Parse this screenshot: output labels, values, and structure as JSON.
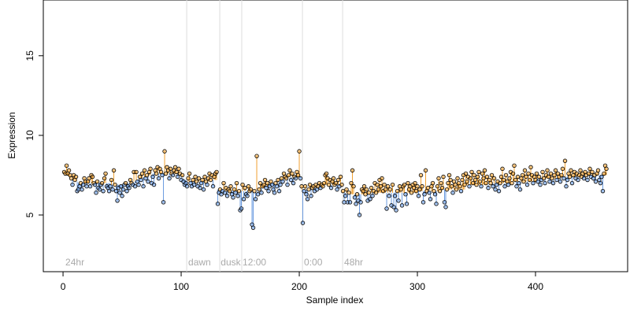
{
  "chart_data": {
    "type": "lollipop",
    "x_label": "Sample index",
    "y_label": "Expression",
    "xlim": [
      -16.7,
      478
    ],
    "ylim": [
      1.44,
      18.5
    ],
    "xticks": [
      0,
      100,
      200,
      300,
      400
    ],
    "yticks": [
      5,
      10,
      15
    ],
    "colors": {
      "above": "#f0a030",
      "below": "#6a9be0",
      "point_edge": "#000000",
      "segment_line": "#dddddd",
      "annotation": "#aaaaaa"
    },
    "segment_lines": [
      104.7,
      132.7,
      151.3,
      202.7,
      236.7
    ],
    "annotations": [
      {
        "x": 2,
        "y": 2.0,
        "label": "24hr"
      },
      {
        "x": 106,
        "y": 2.0,
        "label": "dawn"
      },
      {
        "x": 133.5,
        "y": 2.0,
        "label": "dusk"
      },
      {
        "x": 152,
        "y": 2.0,
        "label": "12:00"
      },
      {
        "x": 204,
        "y": 2.0,
        "label": "0:00"
      },
      {
        "x": 238,
        "y": 2.0,
        "label": "48hr"
      }
    ],
    "values": [
      7.7,
      7.6,
      8.1,
      7.6,
      7.8,
      7.5,
      7.3,
      6.9,
      7.5,
      7.2,
      7.4,
      6.5,
      6.6,
      6.8,
      7.0,
      6.6,
      6.9,
      7.3,
      7.1,
      6.8,
      7.1,
      7.3,
      6.8,
      7.5,
      7.4,
      7.0,
      6.9,
      6.4,
      7.1,
      6.7,
      6.6,
      6.9,
      7.0,
      6.5,
      7.3,
      7.6,
      6.8,
      6.7,
      6.5,
      6.8,
      7.2,
      6.6,
      7.8,
      6.9,
      6.5,
      5.9,
      6.7,
      6.4,
      6.8,
      6.2,
      6.6,
      6.9,
      7.0,
      6.5,
      6.8,
      6.7,
      7.2,
      7.0,
      6.9,
      7.7,
      6.8,
      7.7,
      7.1,
      6.9,
      7.4,
      7.2,
      7.6,
      6.8,
      7.8,
      7.3,
      7.5,
      7.1,
      7.7,
      7.9,
      7.0,
      7.4,
      6.9,
      7.8,
      7.6,
      8.0,
      7.3,
      7.9,
      7.7,
      7.5,
      5.8,
      9.0,
      7.6,
      8.0,
      7.8,
      7.3,
      7.9,
      7.6,
      7.5,
      7.8,
      8.0,
      7.7,
      7.4,
      7.9,
      7.6,
      7.2,
      7.5,
      7.1,
      6.9,
      7.0,
      6.8,
      7.3,
      7.6,
      7.0,
      6.8,
      7.2,
      6.9,
      7.4,
      7.1,
      6.8,
      7.3,
      6.7,
      7.0,
      7.2,
      6.6,
      7.4,
      7.1,
      6.9,
      7.3,
      7.6,
      7.2,
      7.5,
      6.8,
      7.4,
      7.6,
      7.7,
      5.7,
      6.4,
      6.6,
      6.3,
      6.5,
      7.0,
      6.4,
      6.7,
      6.2,
      6.6,
      6.5,
      6.8,
      6.3,
      6.1,
      6.6,
      6.4,
      7.0,
      6.2,
      6.5,
      5.3,
      5.4,
      6.9,
      6.0,
      6.7,
      6.3,
      6.2,
      6.8,
      6.5,
      6.6,
      4.4,
      4.2,
      6.5,
      6.0,
      8.7,
      6.3,
      6.6,
      7.0,
      6.4,
      6.8,
      6.9,
      7.2,
      6.7,
      7.0,
      6.5,
      6.8,
      7.1,
      6.9,
      6.6,
      6.4,
      7.0,
      6.8,
      7.2,
      6.5,
      6.9,
      7.3,
      7.1,
      7.6,
      7.4,
      7.3,
      6.9,
      7.5,
      7.8,
      7.2,
      7.6,
      7.0,
      7.4,
      7.3,
      7.7,
      7.5,
      9.0,
      7.3,
      6.8,
      4.5,
      6.5,
      6.8,
      6.3,
      6.0,
      6.6,
      6.9,
      6.2,
      6.7,
      6.8,
      6.5,
      6.9,
      6.6,
      6.8,
      7.0,
      6.7,
      6.9,
      6.8,
      7.0,
      7.5,
      7.6,
      7.3,
      6.9,
      7.2,
      6.7,
      7.1,
      7.3,
      6.9,
      7.0,
      6.6,
      7.2,
      6.8,
      7.4,
      6.9,
      6.5,
      5.8,
      6.2,
      6.6,
      5.8,
      6.4,
      5.8,
      7.0,
      7.8,
      6.8,
      6.1,
      5.7,
      6.3,
      5.9,
      5.0,
      5.8,
      6.6,
      6.5,
      6.8,
      6.3,
      6.6,
      5.9,
      6.4,
      6.0,
      6.7,
      6.2,
      6.5,
      7.0,
      6.4,
      6.9,
      6.6,
      7.2,
      6.8,
      7.3,
      6.5,
      6.9,
      6.6,
      5.4,
      6.8,
      6.2,
      6.6,
      5.6,
      6.9,
      5.5,
      6.2,
      5.3,
      6.5,
      5.9,
      6.8,
      6.6,
      5.6,
      6.8,
      6.9,
      6.3,
      5.7,
      7.0,
      6.6,
      6.8,
      6.4,
      6.9,
      6.7,
      7.0,
      6.5,
      6.8,
      6.2,
      6.6,
      7.5,
      6.8,
      5.8,
      6.3,
      7.8,
      6.5,
      6.7,
      6.4,
      6.0,
      6.8,
      7.0,
      6.5,
      6.3,
      5.7,
      6.8,
      7.3,
      6.5,
      7.0,
      6.7,
      7.4,
      5.8,
      5.5,
      6.6,
      7.0,
      7.5,
      7.2,
      6.8,
      6.4,
      7.1,
      6.9,
      6.6,
      7.3,
      7.0,
      6.8,
      6.5,
      7.2,
      7.5,
      6.9,
      7.6,
      7.1,
      7.4,
      6.8,
      7.3,
      7.7,
      7.0,
      7.5,
      7.2,
      6.9,
      7.4,
      7.7,
      7.1,
      6.8,
      7.6,
      7.3,
      7.8,
      7.0,
      7.4,
      6.7,
      7.2,
      7.0,
      7.5,
      6.8,
      7.3,
      6.6,
      6.9,
      7.1,
      6.5,
      7.0,
      7.4,
      7.9,
      7.2,
      6.8,
      7.5,
      7.1,
      6.9,
      7.3,
      7.7,
      7.0,
      7.6,
      8.1,
      7.2,
      6.8,
      7.4,
      7.0,
      6.6,
      7.3,
      7.5,
      7.1,
      7.8,
      7.4,
      6.9,
      7.6,
      7.2,
      8.0,
      7.5,
      7.0,
      7.4,
      7.2,
      7.6,
      7.1,
      7.4,
      6.9,
      7.2,
      7.7,
      7.3,
      7.0,
      7.5,
      7.8,
      7.4,
      7.1,
      7.6,
      7.3,
      7.0,
      7.5,
      7.8,
      7.2,
      7.6,
      7.4,
      7.1,
      7.5,
      7.9,
      7.3,
      8.4,
      6.8,
      7.2,
      7.6,
      7.4,
      7.8,
      7.0,
      7.5,
      7.7,
      7.3,
      7.6,
      7.2,
      7.5,
      7.8,
      7.4,
      7.6,
      7.3,
      7.7,
      7.5,
      7.2,
      7.6,
      7.9,
      7.4,
      7.7,
      7.3,
      7.5,
      7.1,
      7.6,
      7.8,
      7.2,
      7.0,
      7.4,
      6.5,
      7.6,
      8.1,
      7.9
    ],
    "baseline": [
      7.6,
      7.6,
      7.5,
      7.5,
      7.4,
      7.4,
      7.3,
      7.3,
      7.2,
      7.2,
      7.1,
      7.1,
      7.0,
      7.0,
      7.0,
      7.0,
      7.0,
      7.0,
      7.0,
      7.0,
      7.0,
      7.0,
      7.0,
      7.0,
      7.0,
      7.0,
      7.0,
      7.0,
      7.0,
      7.0,
      7.0,
      7.0,
      7.0,
      7.0,
      7.0,
      7.0,
      7.0,
      7.0,
      7.0,
      7.0,
      6.9,
      6.9,
      6.9,
      6.9,
      6.9,
      6.9,
      6.9,
      6.9,
      6.9,
      6.9,
      6.9,
      7.0,
      7.0,
      7.0,
      7.0,
      7.0,
      7.0,
      7.0,
      7.1,
      7.1,
      7.1,
      7.2,
      7.2,
      7.2,
      7.3,
      7.3,
      7.3,
      7.4,
      7.4,
      7.4,
      7.5,
      7.5,
      7.5,
      7.5,
      7.5,
      7.6,
      7.6,
      7.6,
      7.6,
      7.6,
      7.6,
      7.6,
      7.6,
      7.6,
      7.6,
      7.6,
      7.6,
      7.6,
      7.6,
      7.6,
      7.6,
      7.6,
      7.6,
      7.6,
      7.6,
      7.6,
      7.6,
      7.6,
      7.6,
      7.6,
      7.4,
      7.3,
      7.2,
      7.2,
      7.1,
      7.1,
      7.1,
      7.1,
      7.1,
      7.1,
      7.1,
      7.1,
      7.1,
      7.1,
      7.1,
      7.1,
      7.1,
      7.1,
      7.1,
      7.1,
      7.1,
      7.1,
      7.1,
      7.2,
      7.2,
      7.2,
      7.2,
      7.2,
      7.2,
      7.2,
      6.6,
      6.6,
      6.6,
      6.6,
      6.6,
      6.6,
      6.5,
      6.5,
      6.5,
      6.5,
      6.5,
      6.5,
      6.5,
      6.5,
      6.5,
      6.5,
      6.5,
      6.5,
      6.5,
      6.5,
      6.5,
      6.5,
      6.5,
      6.5,
      6.5,
      6.5,
      6.5,
      6.5,
      6.5,
      6.5,
      6.5,
      6.5,
      6.5,
      6.6,
      6.6,
      6.6,
      6.6,
      6.7,
      6.7,
      6.7,
      6.8,
      6.8,
      6.8,
      6.9,
      6.9,
      6.9,
      7.0,
      7.0,
      7.0,
      7.0,
      7.1,
      7.1,
      7.1,
      7.2,
      7.2,
      7.2,
      7.3,
      7.3,
      7.3,
      7.3,
      7.4,
      7.4,
      7.4,
      7.4,
      7.4,
      7.4,
      7.4,
      7.4,
      7.4,
      7.4,
      7.4,
      6.6,
      6.6,
      6.6,
      6.6,
      6.6,
      6.6,
      6.6,
      6.7,
      6.7,
      6.7,
      6.7,
      6.7,
      6.7,
      6.8,
      6.8,
      6.8,
      6.8,
      6.8,
      6.8,
      6.9,
      6.9,
      6.9,
      6.9,
      6.9,
      6.9,
      6.9,
      6.9,
      6.9,
      6.9,
      6.9,
      6.9,
      6.9,
      6.9,
      6.9,
      6.9,
      6.4,
      6.4,
      6.4,
      6.4,
      6.4,
      6.4,
      6.3,
      6.3,
      6.3,
      6.3,
      6.3,
      6.3,
      6.3,
      6.3,
      6.3,
      6.3,
      6.3,
      6.3,
      6.3,
      6.3,
      6.3,
      6.3,
      6.3,
      6.3,
      6.4,
      6.4,
      6.4,
      6.4,
      6.4,
      6.4,
      6.4,
      6.4,
      6.4,
      6.4,
      6.4,
      6.4,
      6.4,
      6.4,
      6.4,
      6.4,
      6.4,
      6.4,
      6.4,
      6.4,
      6.4,
      6.4,
      6.4,
      6.4,
      6.4,
      6.4,
      6.4,
      6.4,
      6.4,
      6.4,
      6.4,
      6.4,
      6.4,
      6.4,
      6.4,
      6.4,
      6.4,
      6.4,
      6.4,
      6.4,
      6.5,
      6.5,
      6.5,
      6.5,
      6.5,
      6.5,
      6.5,
      6.5,
      6.5,
      6.5,
      6.5,
      6.5,
      6.5,
      6.5,
      6.5,
      6.5,
      6.5,
      6.5,
      6.5,
      6.5,
      6.6,
      6.6,
      6.6,
      6.6,
      6.6,
      6.6,
      6.6,
      6.6,
      6.6,
      6.6,
      6.6,
      6.6,
      6.6,
      6.6,
      6.6,
      6.6,
      6.6,
      6.6,
      6.6,
      6.6,
      6.9,
      6.9,
      6.9,
      6.9,
      6.9,
      6.9,
      6.9,
      6.9,
      6.9,
      6.9,
      6.9,
      6.9,
      6.9,
      6.9,
      6.9,
      6.9,
      6.9,
      6.9,
      6.9,
      6.9,
      7.0,
      7.0,
      7.0,
      7.0,
      7.0,
      7.0,
      7.0,
      7.0,
      7.0,
      7.0,
      7.0,
      7.0,
      7.0,
      7.0,
      7.0,
      7.0,
      7.0,
      7.0,
      7.0,
      7.0,
      7.1,
      7.1,
      7.1,
      7.1,
      7.1,
      7.1,
      7.1,
      7.1,
      7.1,
      7.1,
      7.1,
      7.1,
      7.1,
      7.1,
      7.1,
      7.1,
      7.1,
      7.1,
      7.1,
      7.1,
      7.3,
      7.3,
      7.3,
      7.3,
      7.3,
      7.3,
      7.3,
      7.3,
      7.3,
      7.3,
      7.3,
      7.3,
      7.3,
      7.3,
      7.3,
      7.3,
      7.3,
      7.3,
      7.3,
      7.3,
      7.4,
      7.4,
      7.4,
      7.4,
      7.4,
      7.4,
      7.4,
      7.4,
      7.4,
      7.4,
      7.4,
      7.4,
      7.4,
      7.4,
      7.4,
      7.4,
      7.4,
      7.4,
      7.4,
      7.4,
      7.5,
      7.5,
      7.5,
      7.5,
      7.5,
      7.5,
      7.5,
      7.5,
      7.5,
      7.5,
      7.5,
      7.5,
      7.5,
      7.5,
      7.5,
      7.5,
      7.5,
      7.5,
      7.5,
      7.5
    ]
  }
}
